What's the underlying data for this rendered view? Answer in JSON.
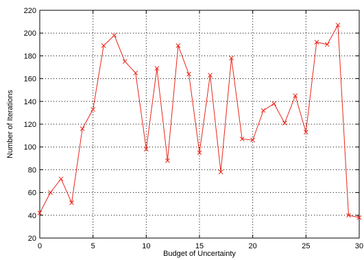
{
  "chart_data": {
    "type": "line",
    "title": "",
    "xlabel": "Budget of Uncertainty",
    "ylabel": "Number of Iterations",
    "xlim": [
      0,
      30
    ],
    "ylim": [
      20,
      220
    ],
    "xticks": [
      0,
      5,
      10,
      15,
      20,
      25,
      30
    ],
    "yticks": [
      20,
      40,
      60,
      80,
      100,
      120,
      140,
      160,
      180,
      200,
      220
    ],
    "grid": true,
    "grid_style": "dotted",
    "marker": "x",
    "series": [
      {
        "color": "#e8261a",
        "x": [
          0,
          1,
          2,
          3,
          4,
          5,
          6,
          7,
          8,
          9,
          10,
          11,
          12,
          13,
          14,
          15,
          16,
          17,
          18,
          19,
          20,
          21,
          22,
          23,
          24,
          25,
          26,
          27,
          28,
          29,
          30
        ],
        "y": [
          42,
          60,
          72,
          51,
          116,
          133,
          189,
          198,
          175,
          165,
          98,
          169,
          88,
          189,
          164,
          95,
          163,
          78,
          178,
          107,
          106,
          132,
          138,
          121,
          145,
          113,
          192,
          190,
          207,
          40,
          38
        ]
      }
    ]
  }
}
